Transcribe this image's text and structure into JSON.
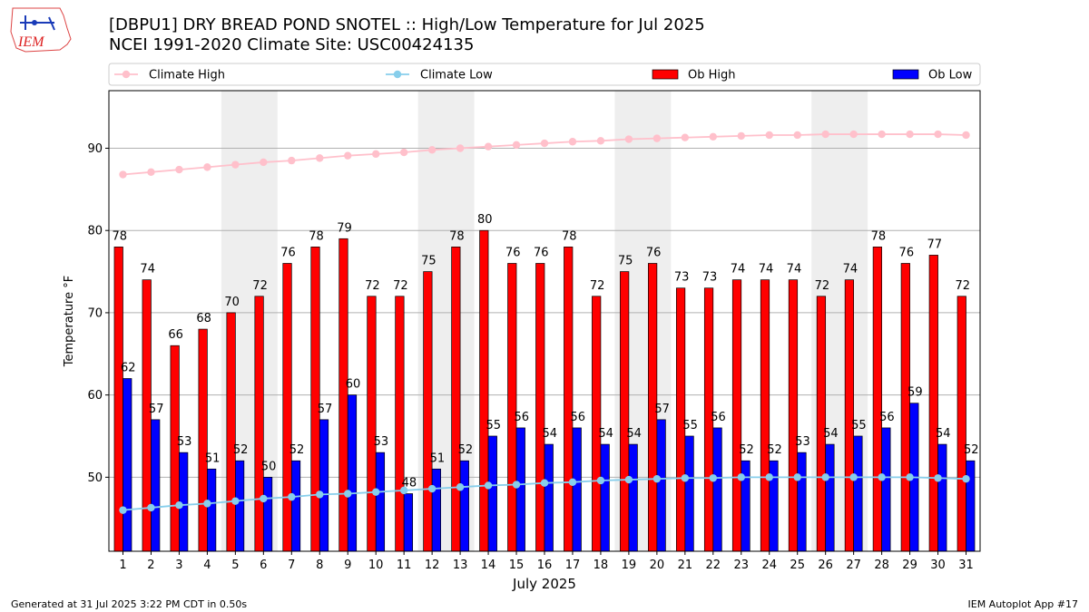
{
  "header": {
    "logo_text": "IEM",
    "title_line1": "[DBPU1] DRY BREAD POND SNOTEL :: High/Low Temperature for Jul 2025",
    "title_line2": "NCEI 1991-2020 Climate Site: USC00424135"
  },
  "footer": {
    "generated": "Generated at 31 Jul 2025 3:22 PM CDT in 0.50s",
    "app": "IEM Autoplot App #17"
  },
  "colors": {
    "ob_high": "#ff0000",
    "ob_low": "#0000ff",
    "climate_high": "#ffc0cb",
    "climate_low": "#87ceeb",
    "weekend_band": "#eeeeee",
    "grid": "#b0b0b0"
  },
  "chart_data": {
    "type": "bar",
    "xlabel": "July 2025",
    "ylabel": "Temperature °F",
    "ylim": [
      41,
      97
    ],
    "yticks": [
      50,
      60,
      70,
      80,
      90
    ],
    "grid": "horizontal",
    "legend_position": "top",
    "categories": [
      "1",
      "2",
      "3",
      "4",
      "5",
      "6",
      "7",
      "8",
      "9",
      "10",
      "11",
      "12",
      "13",
      "14",
      "15",
      "16",
      "17",
      "18",
      "19",
      "20",
      "21",
      "22",
      "23",
      "24",
      "25",
      "26",
      "27",
      "28",
      "29",
      "30",
      "31"
    ],
    "shaded_days": [
      [
        5,
        6
      ],
      [
        12,
        13
      ],
      [
        19,
        20
      ],
      [
        26,
        27
      ]
    ],
    "series": [
      {
        "name": "Climate High",
        "kind": "line",
        "values": [
          86.8,
          87.1,
          87.4,
          87.7,
          88.0,
          88.3,
          88.5,
          88.8,
          89.1,
          89.3,
          89.5,
          89.8,
          90.0,
          90.2,
          90.4,
          90.6,
          90.8,
          90.9,
          91.1,
          91.2,
          91.3,
          91.4,
          91.5,
          91.6,
          91.6,
          91.7,
          91.7,
          91.7,
          91.7,
          91.7,
          91.6
        ]
      },
      {
        "name": "Climate Low",
        "kind": "line",
        "values": [
          46.0,
          46.3,
          46.6,
          46.8,
          47.1,
          47.4,
          47.6,
          47.9,
          48.0,
          48.2,
          48.4,
          48.6,
          48.8,
          49.0,
          49.1,
          49.3,
          49.4,
          49.6,
          49.7,
          49.8,
          49.9,
          49.9,
          50.0,
          50.0,
          50.0,
          50.0,
          50.0,
          50.0,
          50.0,
          49.9,
          49.8
        ]
      },
      {
        "name": "Ob High",
        "kind": "bar",
        "values": [
          78,
          74,
          66,
          68,
          70,
          72,
          76,
          78,
          79,
          72,
          72,
          75,
          78,
          80,
          76,
          76,
          78,
          72,
          75,
          76,
          73,
          73,
          74,
          74,
          74,
          72,
          74,
          78,
          76,
          77,
          72
        ]
      },
      {
        "name": "Ob Low",
        "kind": "bar",
        "values": [
          62,
          57,
          53,
          51,
          52,
          50,
          52,
          57,
          60,
          53,
          48,
          51,
          52,
          55,
          56,
          54,
          56,
          54,
          54,
          57,
          55,
          56,
          52,
          52,
          53,
          54,
          55,
          56,
          59,
          54,
          52
        ]
      }
    ]
  }
}
